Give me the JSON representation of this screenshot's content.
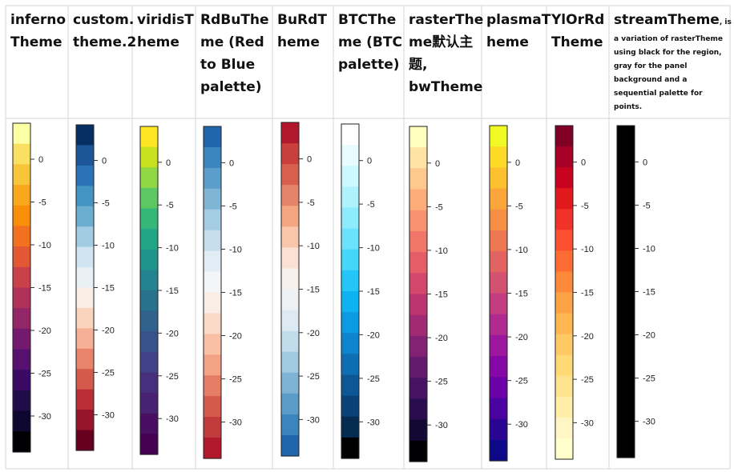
{
  "chart_data": {
    "type": "heatmap",
    "description_kind": "colorkey legends for raster themes",
    "ticks": [
      0,
      -5,
      -10,
      -15,
      -20,
      -25,
      -30
    ],
    "panels": [
      {
        "id": "inferno",
        "title": [
          "inferno",
          "Theme"
        ],
        "colors": [
          "#FCFFA4",
          "#FAE060",
          "#F7C53A",
          "#F9A81C",
          "#F98E09",
          "#F1711F",
          "#E25734",
          "#CB4149",
          "#B0325A",
          "#922667",
          "#741A6E",
          "#56106E",
          "#3A0963",
          "#1F0C48",
          "#0E0730",
          "#000004"
        ]
      },
      {
        "id": "custom2",
        "title": [
          "custom.",
          "theme.2"
        ],
        "colors": [
          "#053061",
          "#1D5698",
          "#2C72B6",
          "#4393C3",
          "#6BAED0",
          "#A3CCE3",
          "#D1E5F0",
          "#EAF1F5",
          "#FAEDE5",
          "#FBD4BE",
          "#F6B096",
          "#E7846B",
          "#D45A4B",
          "#BC2E36",
          "#98142B",
          "#67001F"
        ]
      },
      {
        "id": "viridis",
        "title": [
          "viridisT",
          "heme"
        ],
        "colors": [
          "#FDE725",
          "#C8E020",
          "#8FD744",
          "#5DC863",
          "#35B779",
          "#21A685",
          "#1F948C",
          "#23838E",
          "#29728E",
          "#30628D",
          "#38528C",
          "#404387",
          "#46307E",
          "#482273",
          "#470E61",
          "#440154"
        ]
      },
      {
        "id": "rdbu",
        "title": [
          "RdBuThe",
          "me (Red",
          "to Blue",
          "palette)"
        ],
        "colors": [
          "#2166AC",
          "#3A85BD",
          "#5C9ECB",
          "#7FB6D6",
          "#A4CCE2",
          "#C6DDEC",
          "#E1ECF4",
          "#F4F5F6",
          "#FAEDE6",
          "#FBD9C8",
          "#F9C0A6",
          "#F3A283",
          "#E57D64",
          "#D45A4B",
          "#C13A3C",
          "#B2182B"
        ]
      },
      {
        "id": "burd",
        "title": [
          "BuRdT",
          "heme"
        ],
        "colors": [
          "#B2182B",
          "#C83F3B",
          "#D6604D",
          "#E5846A",
          "#F4A582",
          "#F9C6AC",
          "#FBE1D3",
          "#F7F1EE",
          "#EEF1F4",
          "#DDEAF2",
          "#C2DCEB",
          "#A1CAE1",
          "#7DB3D5",
          "#5B9CC9",
          "#3C84BC",
          "#2166AC"
        ]
      },
      {
        "id": "btc",
        "title": [
          "BTCThe",
          "me (BTC",
          "palette)"
        ],
        "colors": [
          "#FFFFFF",
          "#E8FCFF",
          "#CDF8FF",
          "#AFF2FE",
          "#8EEBFD",
          "#6AE2FC",
          "#45D6FB",
          "#24C6F8",
          "#0FB2F1",
          "#0B9BE3",
          "#0D84CD",
          "#0E6DB3",
          "#0D5796",
          "#0A4277",
          "#062C52",
          "#000000"
        ]
      },
      {
        "id": "raster",
        "title": [
          "rasterThe",
          "me默认主",
          "题,",
          "bwTheme"
        ],
        "colors": [
          "#FFFFC0",
          "#FEE3A5",
          "#FEC98D",
          "#FDAD7A",
          "#F99270",
          "#F1766A",
          "#E55E67",
          "#D3476C",
          "#BC3571",
          "#A12A74",
          "#832175",
          "#641A6F",
          "#461463",
          "#2A0D4E",
          "#130733",
          "#000004"
        ]
      },
      {
        "id": "plasma",
        "title": [
          "plasmaT",
          "heme"
        ],
        "colors": [
          "#F0F921",
          "#FDDA26",
          "#FDC12F",
          "#FBA63A",
          "#F68F44",
          "#EE7851",
          "#E16462",
          "#D35171",
          "#C33D80",
          "#B02A8F",
          "#9C179E",
          "#8507A5",
          "#6A00A8",
          "#4C02A1",
          "#2A0593",
          "#0D0887"
        ]
      },
      {
        "id": "ylorrd",
        "title": [
          "YlOrRd",
          "Theme"
        ],
        "colors": [
          "#800026",
          "#A60026",
          "#C7031F",
          "#E2191C",
          "#F0322A",
          "#FC5030",
          "#FC6C33",
          "#FD8A3B",
          "#FDA245",
          "#FEB651",
          "#FEC965",
          "#FED976",
          "#FEE38E",
          "#FFEDA8",
          "#FFF6C3",
          "#FFFFCC"
        ]
      },
      {
        "id": "stream",
        "title": [
          "streamTheme"
        ],
        "title_suffix": ", is",
        "note": [
          "a variation of rasterTheme",
          "using black for the region,",
          "gray for the panel",
          "background and a",
          "sequential palette for",
          "points."
        ],
        "colors": [
          "#000000",
          "#000000",
          "#000000",
          "#000000",
          "#000000",
          "#000000",
          "#000000",
          "#000000",
          "#000000",
          "#000000",
          "#000000",
          "#000000",
          "#000000",
          "#000000",
          "#000000",
          "#000000"
        ]
      }
    ],
    "grid_color": "#D4D4D4",
    "tick_color": "#333333"
  }
}
